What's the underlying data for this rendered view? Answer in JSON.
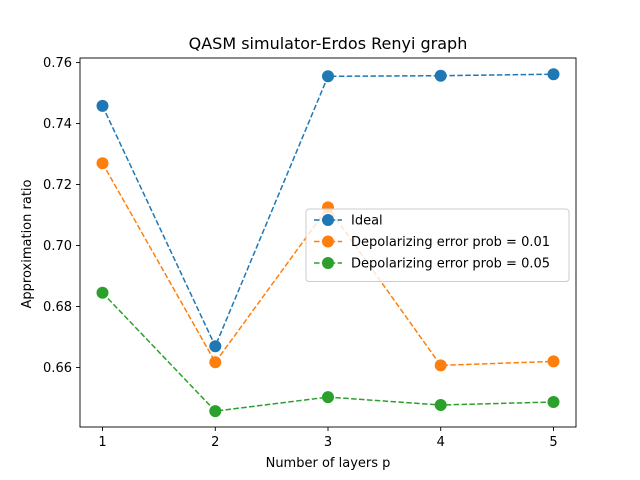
{
  "chart_data": {
    "type": "line",
    "title": "QASM simulator-Erdos Renyi graph",
    "xlabel": "Number of layers p",
    "ylabel": "Approximation ratio",
    "x": [
      1,
      2,
      3,
      4,
      5
    ],
    "xticks": [
      "1",
      "2",
      "3",
      "4",
      "5"
    ],
    "xlim": [
      0.8,
      5.2
    ],
    "ylim": [
      0.6405,
      0.7615
    ],
    "yticks": [
      "0.66",
      "0.68",
      "0.70",
      "0.72",
      "0.74",
      "0.76"
    ],
    "grid": false,
    "legend_position": "center-right",
    "series": [
      {
        "name": "Ideal",
        "color": "#1f77b4",
        "linestyle": "dashed",
        "marker": "circle",
        "values": [
          0.7458,
          0.667,
          0.7555,
          0.7557,
          0.7562
        ]
      },
      {
        "name": "Depolarizing error prob = 0.01",
        "color": "#ff7f0e",
        "linestyle": "dashed",
        "marker": "circle",
        "values": [
          0.727,
          0.6617,
          0.7125,
          0.6607,
          0.662
        ]
      },
      {
        "name": "Depolarizing error prob = 0.05",
        "color": "#2ca02c",
        "linestyle": "dashed",
        "marker": "circle",
        "values": [
          0.6845,
          0.6457,
          0.6503,
          0.6477,
          0.6487
        ]
      }
    ]
  }
}
